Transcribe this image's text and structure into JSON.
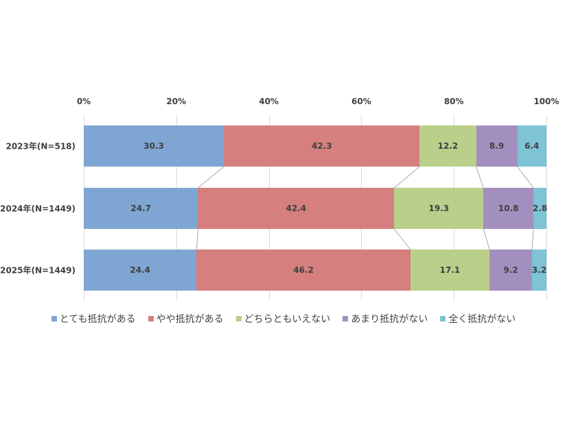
{
  "chart_data": {
    "type": "bar",
    "orientation": "horizontal",
    "stacked": "percent",
    "categories": [
      "2023年(N=518)",
      "2024年(N=1449)",
      "2025年(N=1449)"
    ],
    "series": [
      {
        "name": "とても抵抗がある",
        "color": "#7FA6D3",
        "values": [
          30.3,
          24.7,
          24.4
        ]
      },
      {
        "name": "やや抵抗がある",
        "color": "#D57F7E",
        "values": [
          42.3,
          42.4,
          46.2
        ]
      },
      {
        "name": "どちらともいえない",
        "color": "#BACF8A",
        "values": [
          12.2,
          19.3,
          17.1
        ]
      },
      {
        "name": "あまり抵抗がない",
        "color": "#A38FBF",
        "values": [
          8.9,
          10.8,
          9.2
        ]
      },
      {
        "name": "全く抵抗がない",
        "color": "#7EC3D6",
        "values": [
          6.4,
          2.8,
          3.2
        ]
      }
    ],
    "x_ticks": [
      "0%",
      "20%",
      "40%",
      "60%",
      "80%",
      "100%"
    ],
    "xlim": [
      0,
      100
    ],
    "grid": true,
    "series_lines": true,
    "legend_position": "bottom",
    "title": "",
    "xlabel": "",
    "ylabel": ""
  }
}
